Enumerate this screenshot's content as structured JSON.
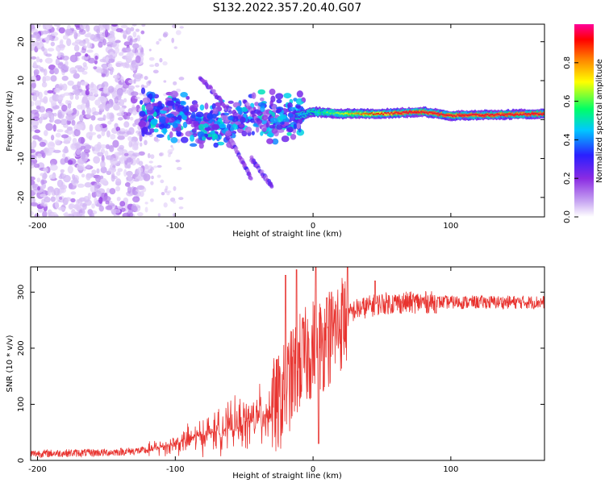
{
  "page_title": "S132.2022.357.20.40.G07",
  "chart_data": [
    {
      "type": "heatmap",
      "title": "",
      "xlabel": "Height of straight line (km)",
      "ylabel": "Frequency (Hz)",
      "xlim": [
        -205,
        168
      ],
      "ylim": [
        -25,
        24.5
      ],
      "xticks": [
        -200,
        -100,
        0,
        100
      ],
      "yticks": [
        -20,
        -10,
        0,
        10,
        20
      ],
      "grid": false,
      "colorbar": {
        "label": "Normalized spectral amplitude",
        "range": [
          0,
          1
        ],
        "ticks": [
          "0.0",
          "0.2",
          "0.4",
          "0.6",
          "0.8"
        ],
        "colors": [
          "#ffffff",
          "#c8a6f2",
          "#8a2be2",
          "#2a1fff",
          "#00c8ff",
          "#00ff66",
          "#ffff00",
          "#ff8000",
          "#ff0000",
          "#ff0099"
        ]
      },
      "ridge_frequency": [
        {
          "x": -120,
          "y": 2
        },
        {
          "x": -100,
          "y": 1
        },
        {
          "x": -80,
          "y": -2
        },
        {
          "x": -60,
          "y": -1
        },
        {
          "x": -40,
          "y": 1
        },
        {
          "x": -20,
          "y": 0
        },
        {
          "x": 0,
          "y": 2
        },
        {
          "x": 20,
          "y": 1.5
        },
        {
          "x": 50,
          "y": 1.5
        },
        {
          "x": 80,
          "y": 2
        },
        {
          "x": 100,
          "y": 1
        },
        {
          "x": 168,
          "y": 1.5
        }
      ]
    },
    {
      "type": "line",
      "title": "",
      "xlabel": "Height of straight line (km)",
      "ylabel": "SNR (10 * v/v)",
      "xlim": [
        -205,
        168
      ],
      "ylim": [
        0,
        345
      ],
      "xticks": [
        -200,
        -100,
        0,
        100
      ],
      "yticks": [
        0,
        100,
        200,
        300
      ],
      "grid": false,
      "series": [
        {
          "color": "#e8332f",
          "trend": [
            {
              "x": -205,
              "y": 12
            },
            {
              "x": -150,
              "y": 14
            },
            {
              "x": -120,
              "y": 18
            },
            {
              "x": -100,
              "y": 30
            },
            {
              "x": -80,
              "y": 45
            },
            {
              "x": -60,
              "y": 60
            },
            {
              "x": -40,
              "y": 75
            },
            {
              "x": -25,
              "y": 100
            },
            {
              "x": -15,
              "y": 150
            },
            {
              "x": -10,
              "y": 175
            },
            {
              "x": -5,
              "y": 185
            },
            {
              "x": 0,
              "y": 200
            },
            {
              "x": 5,
              "y": 205
            },
            {
              "x": 10,
              "y": 215
            },
            {
              "x": 20,
              "y": 245
            },
            {
              "x": 30,
              "y": 268
            },
            {
              "x": 50,
              "y": 280
            },
            {
              "x": 80,
              "y": 282
            },
            {
              "x": 110,
              "y": 282
            },
            {
              "x": 168,
              "y": 282
            }
          ],
          "spikes": [
            {
              "x": -20,
              "y": 330
            },
            {
              "x": -12,
              "y": 340
            },
            {
              "x": 2,
              "y": 345
            },
            {
              "x": 4,
              "y": 30
            },
            {
              "x": 10,
              "y": 290
            },
            {
              "x": 25,
              "y": 345
            },
            {
              "x": 45,
              "y": 320
            }
          ]
        }
      ]
    }
  ]
}
